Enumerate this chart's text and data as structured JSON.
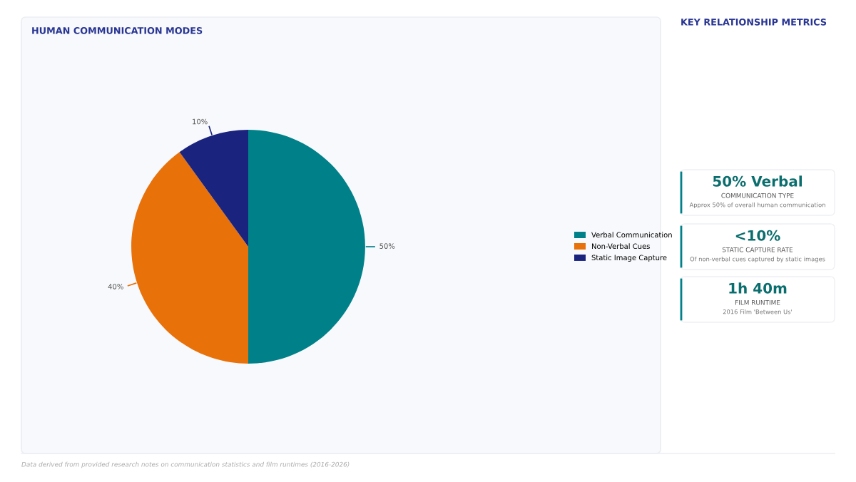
{
  "chart_data": [
    {
      "type": "pie",
      "title": "HUMAN COMMUNICATION MODES",
      "categories": [
        "Verbal Communication",
        "Non-Verbal Cues",
        "Static Image Capture"
      ],
      "values": [
        50,
        40,
        10
      ],
      "colors": [
        "#00818a",
        "#e8710a",
        "#1a237e"
      ],
      "value_labels": [
        "50%",
        "40%",
        "10%"
      ],
      "legend": "right",
      "annotations": [
        "Data derived from provided research notes on communication statistics and film runtimes (2016-2026)"
      ]
    },
    {
      "type": "other",
      "title": "KEY RELATIONSHIP METRICS",
      "annotations": [
        "50% Verbal",
        "COMMUNICATION TYPE",
        "Approx 50% of overall human communication",
        "<10%",
        "STATIC CAPTURE RATE",
        "Of non-verbal cues captured by static images",
        "1h 40m",
        "FILM RUNTIME",
        "2016 Film 'Between Us'"
      ]
    }
  ]
}
